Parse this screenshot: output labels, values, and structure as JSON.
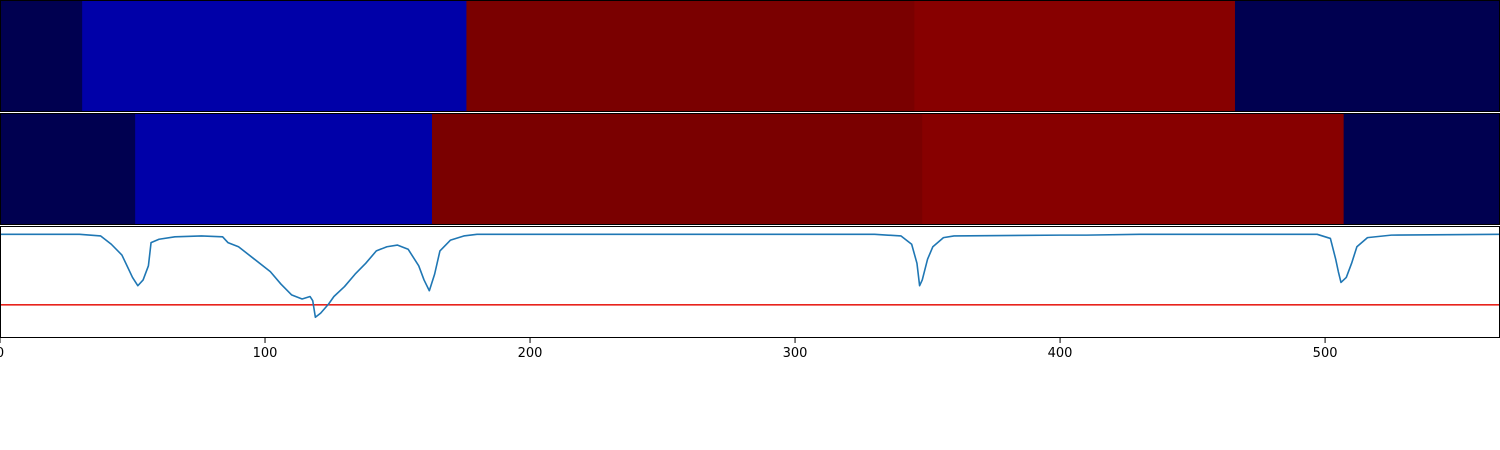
{
  "chart_data": [
    {
      "type": "heatmap",
      "panel": "segmentation-track-top",
      "xlim": [
        0,
        566
      ],
      "segments": [
        {
          "start": 0,
          "end": 31,
          "color": "#000050"
        },
        {
          "start": 31,
          "end": 176,
          "color": "#0000a8"
        },
        {
          "start": 176,
          "end": 345,
          "color": "#7a0000"
        },
        {
          "start": 345,
          "end": 466,
          "color": "#870000"
        },
        {
          "start": 466,
          "end": 566,
          "color": "#000050"
        }
      ]
    },
    {
      "type": "heatmap",
      "panel": "segmentation-track-bottom",
      "xlim": [
        0,
        566
      ],
      "segments": [
        {
          "start": 0,
          "end": 51,
          "color": "#000050"
        },
        {
          "start": 51,
          "end": 163,
          "color": "#0000a8"
        },
        {
          "start": 163,
          "end": 348,
          "color": "#7a0000"
        },
        {
          "start": 348,
          "end": 507,
          "color": "#870000"
        },
        {
          "start": 507,
          "end": 566,
          "color": "#000050"
        }
      ]
    },
    {
      "type": "line",
      "panel": "score-curve",
      "xlim": [
        0,
        566
      ],
      "ylim": [
        -1.25,
        0.1
      ],
      "grid": false,
      "line_color": "#1f77b4",
      "threshold": {
        "y": -0.85,
        "color": "#e8231c"
      },
      "x_ticks": [
        "0",
        "100",
        "200",
        "300",
        "400",
        "500"
      ],
      "tick_values": [
        0,
        100,
        200,
        300,
        400,
        500
      ],
      "series": [
        {
          "points": [
            [
              0,
              0.0
            ],
            [
              30,
              0.0
            ],
            [
              38,
              -0.02
            ],
            [
              42,
              -0.12
            ],
            [
              46,
              -0.25
            ],
            [
              50,
              -0.52
            ],
            [
              52,
              -0.62
            ],
            [
              54,
              -0.55
            ],
            [
              56,
              -0.38
            ],
            [
              57,
              -0.1
            ],
            [
              60,
              -0.06
            ],
            [
              66,
              -0.03
            ],
            [
              76,
              -0.02
            ],
            [
              84,
              -0.03
            ],
            [
              86,
              -0.1
            ],
            [
              90,
              -0.15
            ],
            [
              96,
              -0.3
            ],
            [
              102,
              -0.45
            ],
            [
              106,
              -0.6
            ],
            [
              110,
              -0.73
            ],
            [
              114,
              -0.78
            ],
            [
              117,
              -0.75
            ],
            [
              118,
              -0.8
            ],
            [
              119,
              -1.0
            ],
            [
              121,
              -0.95
            ],
            [
              124,
              -0.84
            ],
            [
              126,
              -0.75
            ],
            [
              130,
              -0.63
            ],
            [
              134,
              -0.48
            ],
            [
              138,
              -0.35
            ],
            [
              142,
              -0.2
            ],
            [
              146,
              -0.15
            ],
            [
              150,
              -0.13
            ],
            [
              154,
              -0.18
            ],
            [
              158,
              -0.38
            ],
            [
              160,
              -0.55
            ],
            [
              162,
              -0.68
            ],
            [
              164,
              -0.48
            ],
            [
              166,
              -0.2
            ],
            [
              170,
              -0.07
            ],
            [
              175,
              -0.02
            ],
            [
              180,
              0.0
            ],
            [
              330,
              0.0
            ],
            [
              340,
              -0.02
            ],
            [
              344,
              -0.12
            ],
            [
              346,
              -0.35
            ],
            [
              347,
              -0.62
            ],
            [
              348,
              -0.55
            ],
            [
              350,
              -0.3
            ],
            [
              352,
              -0.15
            ],
            [
              356,
              -0.04
            ],
            [
              360,
              -0.02
            ],
            [
              400,
              -0.01
            ],
            [
              410,
              -0.01
            ],
            [
              430,
              0.0
            ],
            [
              497,
              0.0
            ],
            [
              502,
              -0.05
            ],
            [
              504,
              -0.3
            ],
            [
              505,
              -0.45
            ],
            [
              506,
              -0.58
            ],
            [
              508,
              -0.52
            ],
            [
              510,
              -0.35
            ],
            [
              512,
              -0.15
            ],
            [
              516,
              -0.04
            ],
            [
              525,
              -0.01
            ],
            [
              566,
              0.0
            ]
          ]
        }
      ]
    }
  ],
  "colors": {
    "background": "#ffffff",
    "axis": "#000000",
    "separator": "#ffffff"
  }
}
